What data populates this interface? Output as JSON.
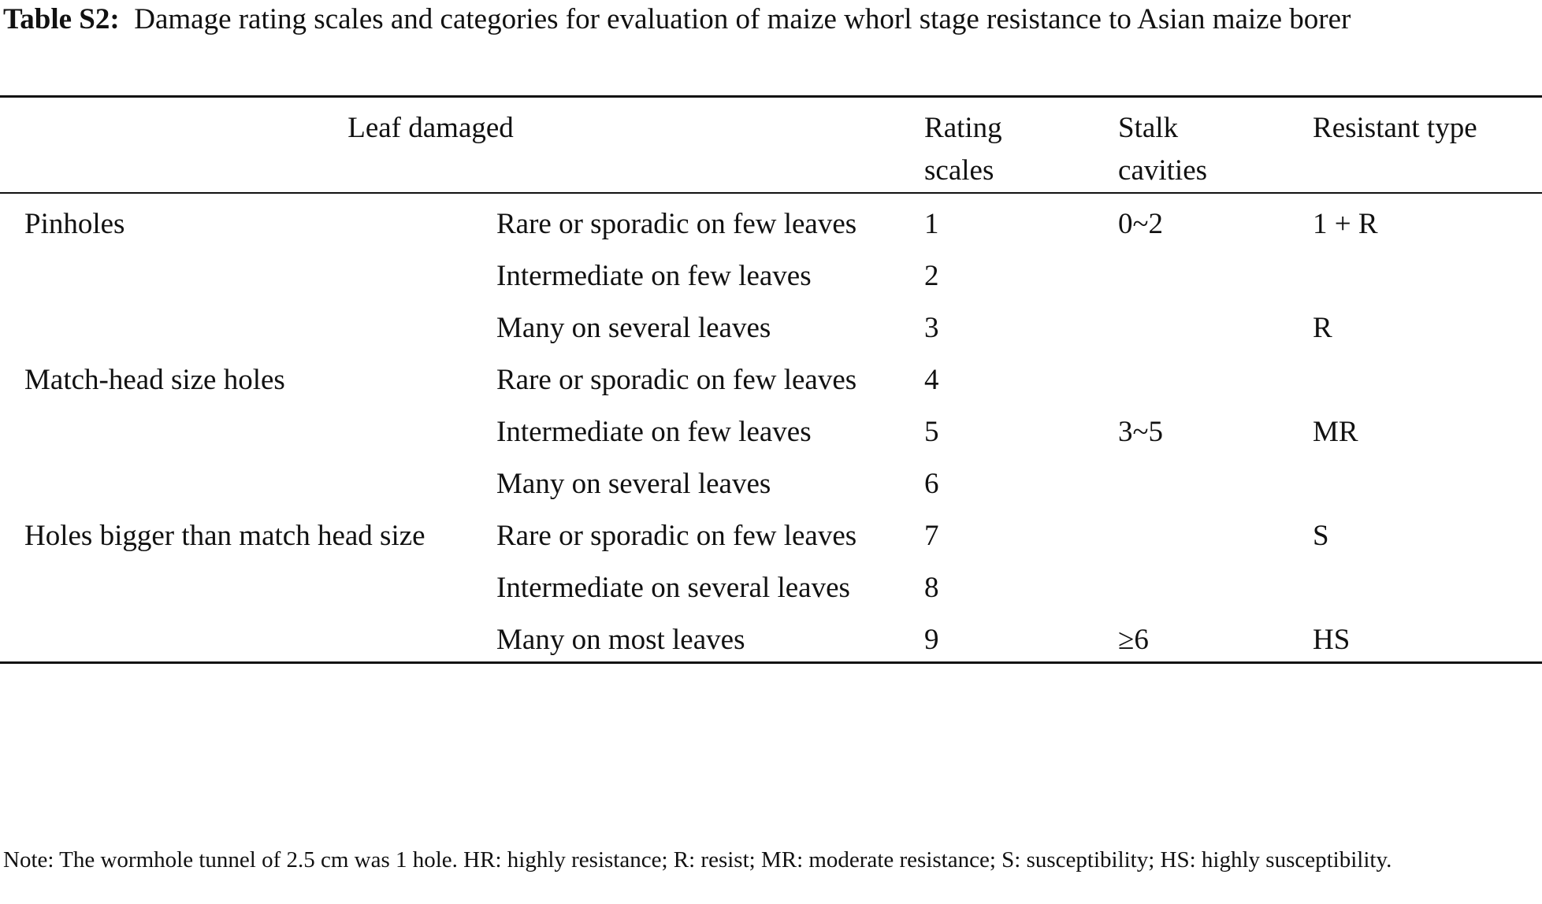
{
  "caption": {
    "label": "Table S2:",
    "text": "Damage rating scales and categories for evaluation of maize whorl stage resistance to Asian maize borer"
  },
  "headers": {
    "leaf_damaged": "Leaf damaged",
    "rating_scales": "Rating scales",
    "stalk_cavities": "Stalk cavities",
    "resistant_type": "Resistant type"
  },
  "rows": [
    {
      "group": "Pinholes",
      "description": "Rare or sporadic on few leaves",
      "rating": "1",
      "cavities": "0~2",
      "type": "1 + R"
    },
    {
      "group": "",
      "description": "Intermediate on few leaves",
      "rating": "2",
      "cavities": "",
      "type": ""
    },
    {
      "group": "",
      "description": "Many on several leaves",
      "rating": "3",
      "cavities": "",
      "type": "R"
    },
    {
      "group": "Match-head size holes",
      "description": "Rare or sporadic on few leaves",
      "rating": "4",
      "cavities": "",
      "type": ""
    },
    {
      "group": "",
      "description": "Intermediate on few leaves",
      "rating": "5",
      "cavities": "3~5",
      "type": "MR"
    },
    {
      "group": "",
      "description": "Many on several leaves",
      "rating": "6",
      "cavities": "",
      "type": ""
    },
    {
      "group": "Holes bigger than match head size",
      "description": "Rare or sporadic on few leaves",
      "rating": "7",
      "cavities": "",
      "type": "S"
    },
    {
      "group": "",
      "description": "Intermediate on several leaves",
      "rating": "8",
      "cavities": "",
      "type": ""
    },
    {
      "group": "",
      "description": "Many on most leaves",
      "rating": "9",
      "cavities": "≥6",
      "type": "HS"
    }
  ],
  "note": "Note: The wormhole tunnel of 2.5 cm was 1 hole. HR: highly resistance; R: resist; MR: moderate resistance; S: susceptibility; HS: highly susceptibility."
}
